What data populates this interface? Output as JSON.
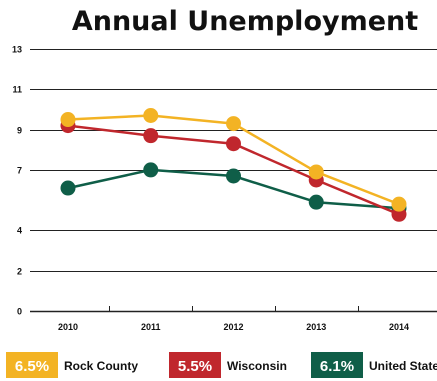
{
  "chart_data": {
    "type": "line",
    "title": "Annual Unemployment",
    "xlabel": "",
    "ylabel": "",
    "x": [
      "2010",
      "2011",
      "2012",
      "2013",
      "2014"
    ],
    "yticks": [
      "0",
      "2",
      "4",
      "7",
      "9",
      "11",
      "13"
    ],
    "ylim": [
      0,
      13
    ],
    "grid": true,
    "legend_position": "bottom",
    "series": [
      {
        "name": "Rock County",
        "legend_value": "6.5%",
        "color": "#f3b324",
        "values": [
          9.5,
          9.7,
          9.3,
          6.9,
          5.3
        ]
      },
      {
        "name": "Wisconsin",
        "legend_value": "5.5%",
        "color": "#c0272d",
        "values": [
          9.2,
          8.7,
          8.3,
          6.5,
          4.8
        ]
      },
      {
        "name": "United States",
        "legend_value": "6.1%",
        "color": "#0f5e48",
        "values": [
          6.1,
          7.0,
          6.7,
          5.4,
          5.1
        ]
      }
    ]
  }
}
